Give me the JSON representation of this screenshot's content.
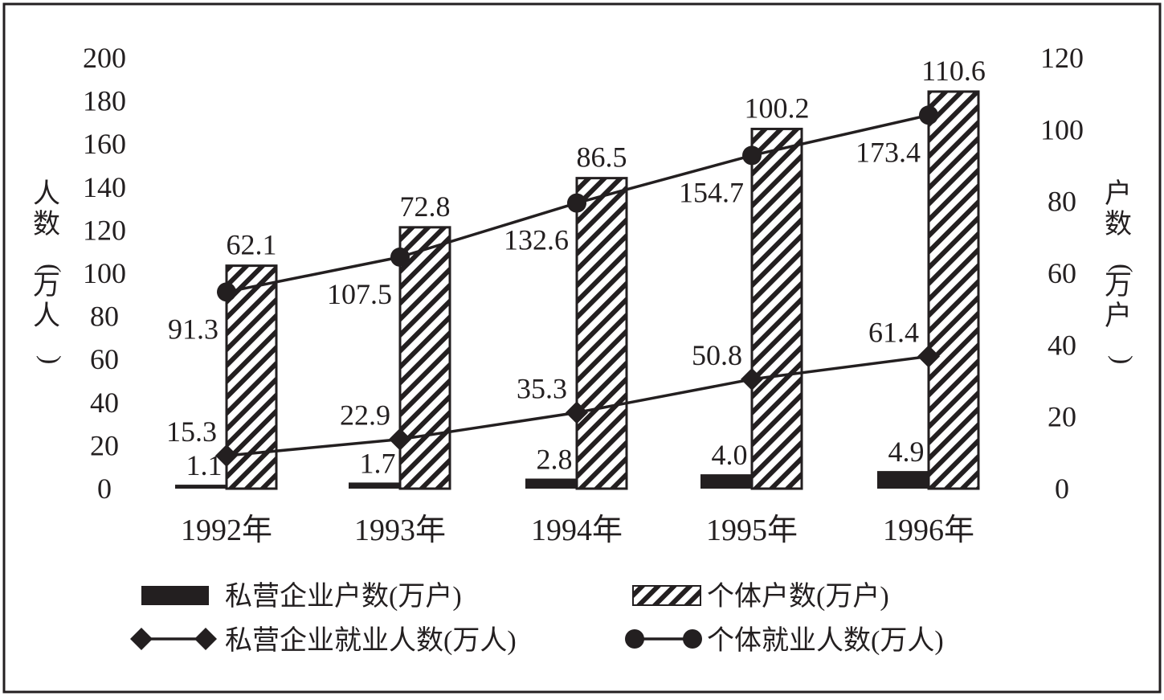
{
  "chart_data": {
    "type": "bar",
    "categories": [
      "1992年",
      "1993年",
      "1994年",
      "1995年",
      "1996年"
    ],
    "left_axis": {
      "label": "人数(万人)",
      "ylim": [
        0,
        200
      ],
      "ticks": [
        "0",
        "20",
        "40",
        "60",
        "80",
        "100",
        "120",
        "140",
        "160",
        "180",
        "200"
      ]
    },
    "right_axis": {
      "label": "户数(万户)",
      "ylim": [
        0,
        120
      ],
      "ticks": [
        "0",
        "20",
        "40",
        "60",
        "80",
        "100",
        "120"
      ]
    },
    "series": [
      {
        "name": "私营企业户数(万户)",
        "kind": "bar",
        "axis": "right",
        "fill": "solid",
        "values": [
          1.1,
          1.7,
          2.8,
          4.0,
          4.9
        ],
        "labels": [
          "1.1",
          "1.7",
          "2.8",
          "4.0",
          "4.9"
        ]
      },
      {
        "name": "个体户数(万户)",
        "kind": "bar",
        "axis": "right",
        "fill": "hatched",
        "values": [
          62.1,
          72.8,
          86.5,
          100.2,
          110.6
        ],
        "labels": [
          "62.1",
          "72.8",
          "86.5",
          "100.2",
          "110.6"
        ]
      },
      {
        "name": "私营企业就业人数(万人)",
        "kind": "line",
        "axis": "left",
        "marker": "diamond",
        "values": [
          15.3,
          22.9,
          35.3,
          50.8,
          61.4
        ],
        "labels": [
          "15.3",
          "22.9",
          "35.3",
          "50.8",
          "61.4"
        ]
      },
      {
        "name": "个体就业人数(万人)",
        "kind": "line",
        "axis": "left",
        "marker": "circle",
        "values": [
          91.3,
          107.5,
          132.6,
          154.7,
          173.4
        ],
        "labels": [
          "91.3",
          "107.5",
          "132.6",
          "154.7",
          "173.4"
        ]
      }
    ],
    "grid": false,
    "legend_position": "bottom"
  },
  "colors": {
    "ink": "#231f20",
    "background": "#ffffff"
  }
}
